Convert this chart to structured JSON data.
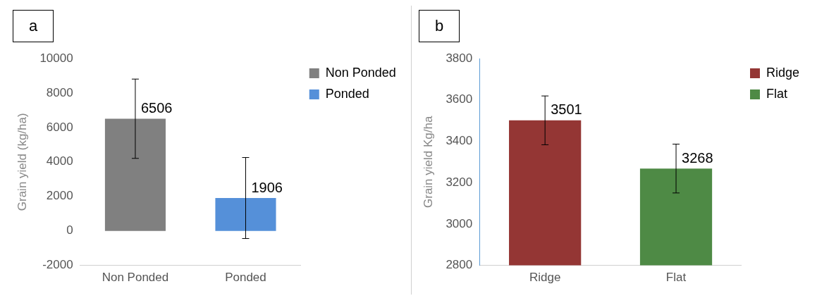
{
  "chart_data": [
    {
      "type": "bar",
      "categories": [
        "Non Ponded",
        "Ponded"
      ],
      "ylabel": "Grain yield (kg/ha)",
      "annotations": [
        "a"
      ],
      "series": [
        {
          "name": "Non Ponded",
          "color": "#808080",
          "values": [
            6506,
            null
          ],
          "errors": [
            2300,
            null
          ]
        },
        {
          "name": "Ponded",
          "color": "#5590d9",
          "values": [
            null,
            1906
          ],
          "errors": [
            null,
            2350
          ]
        }
      ],
      "ylim": [
        -2000,
        10000
      ],
      "yticks": [
        -2000,
        0,
        2000,
        4000,
        6000,
        8000,
        10000
      ],
      "grid": false,
      "legend": "top right",
      "data_labels": true
    },
    {
      "type": "bar",
      "categories": [
        "Ridge",
        "Flat"
      ],
      "ylabel": "Grain yield Kg/ha",
      "annotations": [
        "b"
      ],
      "series": [
        {
          "name": "Ridge",
          "color": "#943634",
          "values": [
            3501,
            null
          ],
          "errors": [
            118,
            null
          ]
        },
        {
          "name": "Flat",
          "color": "#4e8a45",
          "values": [
            null,
            3268
          ],
          "errors": [
            null,
            118
          ]
        }
      ],
      "ylim": [
        2800,
        3800
      ],
      "yticks": [
        2800,
        3000,
        3200,
        3400,
        3600,
        3800
      ],
      "grid": false,
      "legend": "top right",
      "data_labels": true
    }
  ]
}
